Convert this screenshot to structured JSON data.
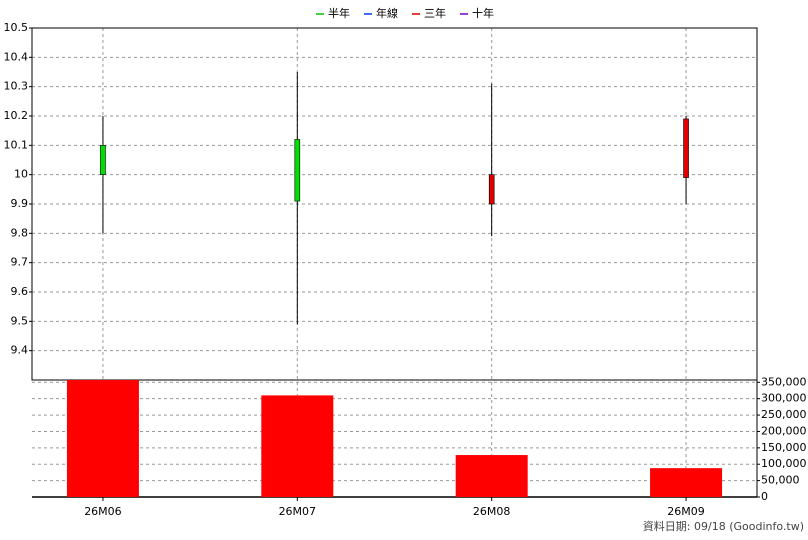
{
  "chart_data": {
    "type": "candlestick",
    "legend": [
      {
        "name": "半年",
        "color": "#00c000"
      },
      {
        "name": "年線",
        "color": "#0040ff"
      },
      {
        "name": "三年",
        "color": "#e00000"
      },
      {
        "name": "十年",
        "color": "#8000c0"
      }
    ],
    "categories": [
      "26M06",
      "26M07",
      "26M08",
      "26M09"
    ],
    "open": [
      10.1,
      10.12,
      9.9,
      9.99
    ],
    "high": [
      10.2,
      10.35,
      10.31,
      10.2
    ],
    "low": [
      9.8,
      9.49,
      9.79,
      9.9
    ],
    "close": [
      10.0,
      9.91,
      10.0,
      10.19
    ],
    "up_color": "#e00000",
    "down_color": "#00e000",
    "ylim": [
      9.3,
      10.5
    ],
    "yticks": [
      9.4,
      9.5,
      9.6,
      9.7,
      9.8,
      9.9,
      10,
      10.1,
      10.2,
      10.3,
      10.4,
      10.5
    ],
    "volume": [
      357000,
      310000,
      128000,
      88000
    ],
    "volume_color": "#ff0000",
    "y2lim": [
      0,
      357000
    ],
    "y2ticks": [
      0,
      {
        "value": 50000,
        "label": "50,000"
      },
      {
        "value": 100000,
        "label": "100,000"
      },
      {
        "value": 150000,
        "label": "150,000"
      },
      {
        "value": 200000,
        "label": "200,000"
      },
      {
        "value": 250000,
        "label": "250,000"
      },
      {
        "value": 300000,
        "label": "300,000"
      },
      {
        "value": 350000,
        "label": "350,000"
      }
    ],
    "grid": true,
    "source": "資料日期: 09/18 (Goodinfo.tw)"
  }
}
